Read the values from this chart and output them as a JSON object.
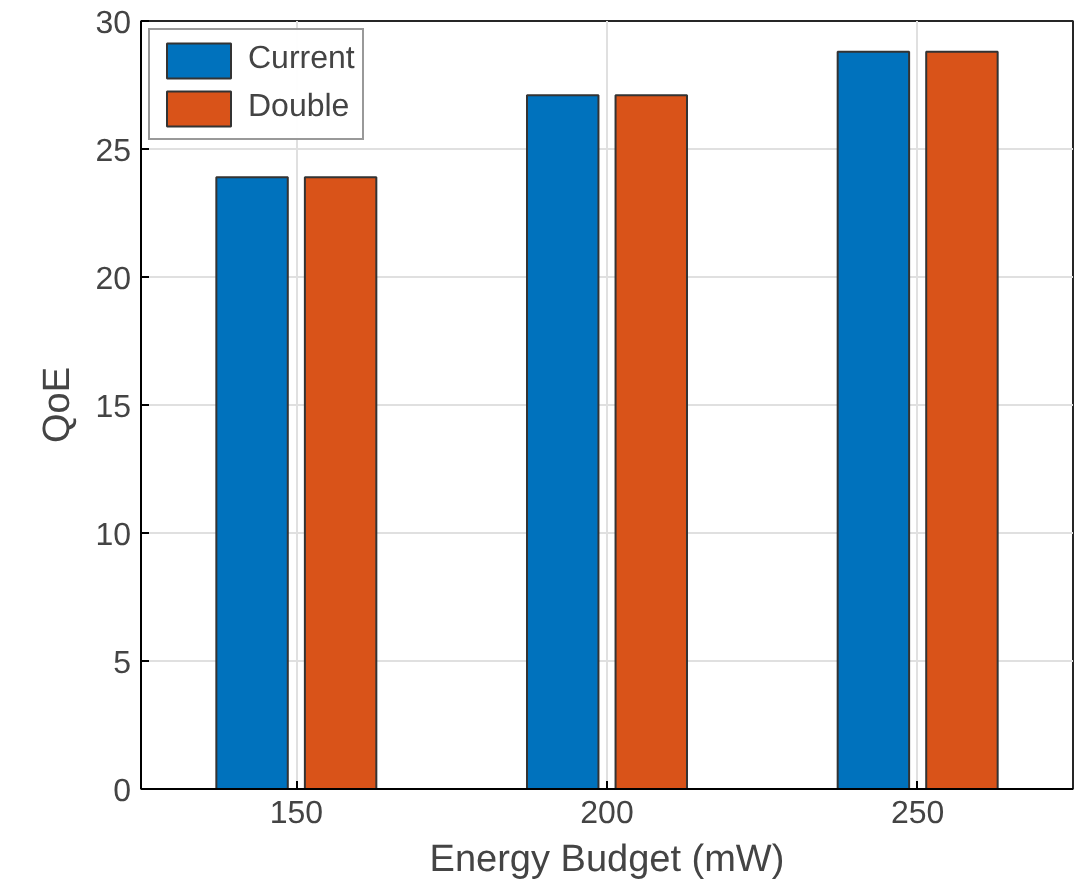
{
  "chart_data": {
    "type": "bar",
    "xlabel": "Energy Budget (mW)",
    "ylabel": "QoE",
    "categories": [
      "150",
      "200",
      "250"
    ],
    "series": [
      {
        "name": "Current",
        "color": "#0072bd",
        "values": [
          23.9,
          27.1,
          28.8
        ]
      },
      {
        "name": "Double",
        "color": "#d95319",
        "values": [
          23.9,
          27.1,
          28.8
        ]
      }
    ],
    "ylim": [
      0,
      30
    ],
    "yticks": [
      0,
      5,
      10,
      15,
      20,
      25,
      30
    ],
    "grid": true,
    "legend": "top left"
  }
}
